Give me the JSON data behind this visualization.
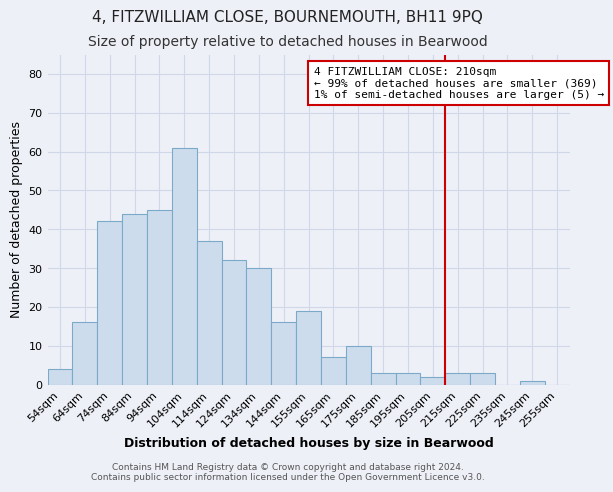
{
  "title": "4, FITZWILLIAM CLOSE, BOURNEMOUTH, BH11 9PQ",
  "subtitle": "Size of property relative to detached houses in Bearwood",
  "xlabel": "Distribution of detached houses by size in Bearwood",
  "ylabel": "Number of detached properties",
  "bin_labels": [
    "54sqm",
    "64sqm",
    "74sqm",
    "84sqm",
    "94sqm",
    "104sqm",
    "114sqm",
    "124sqm",
    "134sqm",
    "144sqm",
    "155sqm",
    "165sqm",
    "175sqm",
    "185sqm",
    "195sqm",
    "205sqm",
    "215sqm",
    "225sqm",
    "235sqm",
    "245sqm",
    "255sqm"
  ],
  "bar_heights": [
    4,
    16,
    42,
    44,
    45,
    61,
    37,
    32,
    30,
    16,
    19,
    7,
    10,
    3,
    3,
    2,
    3,
    3,
    0,
    1,
    0
  ],
  "bar_color": "#ccdcec",
  "bar_edge_color": "#7aaac8",
  "grid_color": "#d0d8e8",
  "vline_color": "#cc0000",
  "annotation_text": "4 FITZWILLIAM CLOSE: 210sqm\n← 99% of detached houses are smaller (369)\n1% of semi-detached houses are larger (5) →",
  "annotation_box_color": "#ffffff",
  "annotation_box_edgecolor": "#cc0000",
  "ylim": [
    0,
    85
  ],
  "footer1": "Contains HM Land Registry data © Crown copyright and database right 2024.",
  "footer2": "Contains public sector information licensed under the Open Government Licence v3.0.",
  "background_color": "#eef0f8",
  "title_fontsize": 11,
  "subtitle_fontsize": 10
}
